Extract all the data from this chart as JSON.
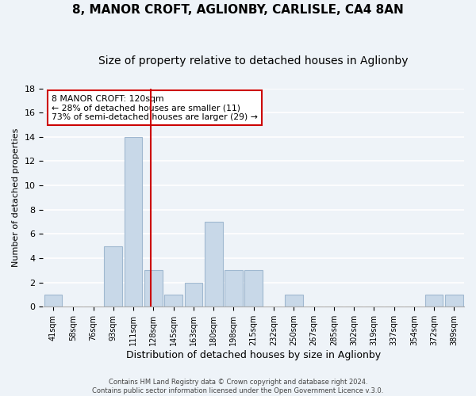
{
  "title": "8, MANOR CROFT, AGLIONBY, CARLISLE, CA4 8AN",
  "subtitle": "Size of property relative to detached houses in Aglionby",
  "xlabel": "Distribution of detached houses by size in Aglionby",
  "ylabel": "Number of detached properties",
  "bin_labels": [
    "41sqm",
    "58sqm",
    "76sqm",
    "93sqm",
    "111sqm",
    "128sqm",
    "145sqm",
    "163sqm",
    "180sqm",
    "198sqm",
    "215sqm",
    "232sqm",
    "250sqm",
    "267sqm",
    "285sqm",
    "302sqm",
    "319sqm",
    "337sqm",
    "354sqm",
    "372sqm",
    "389sqm"
  ],
  "bar_values": [
    1,
    0,
    0,
    5,
    14,
    3,
    1,
    2,
    7,
    3,
    3,
    0,
    1,
    0,
    0,
    0,
    0,
    0,
    0,
    1,
    1
  ],
  "bar_color": "#c8d8e8",
  "bar_edge_color": "#a0b8d0",
  "vline_x": 4.85,
  "vline_color": "#cc0000",
  "ylim": [
    0,
    18
  ],
  "annotation_box_text": "8 MANOR CROFT: 120sqm\n← 28% of detached houses are smaller (11)\n73% of semi-detached houses are larger (29) →",
  "footer_text": "Contains HM Land Registry data © Crown copyright and database right 2024.\nContains public sector information licensed under the Open Government Licence v.3.0.",
  "title_fontsize": 11,
  "subtitle_fontsize": 10,
  "background_color": "#eef3f8",
  "plot_background_color": "#eef3f8",
  "yticks": [
    0,
    2,
    4,
    6,
    8,
    10,
    12,
    14,
    16,
    18
  ]
}
